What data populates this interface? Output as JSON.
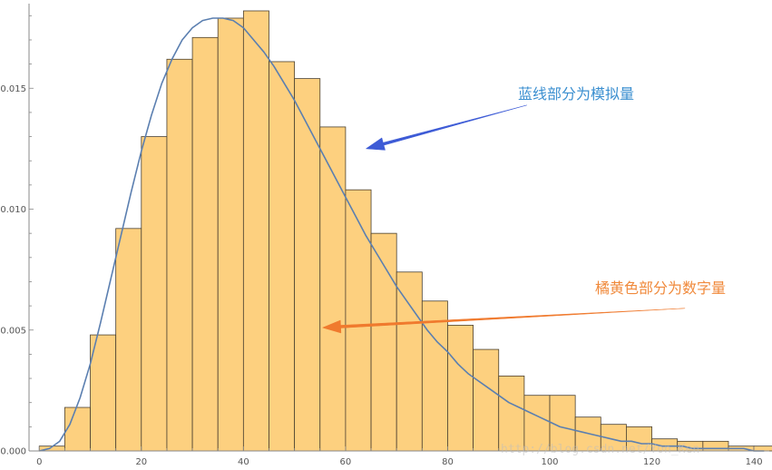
{
  "chart_data": {
    "type": "bar",
    "subtype": "histogram-with-density-curve",
    "bin_width": 5,
    "bin_left_edges": [
      0,
      5,
      10,
      15,
      20,
      25,
      30,
      35,
      40,
      45,
      50,
      55,
      60,
      65,
      70,
      75,
      80,
      85,
      90,
      95,
      100,
      105,
      110,
      115,
      120,
      125,
      130,
      135,
      140
    ],
    "values": [
      0.0002,
      0.0018,
      0.0048,
      0.0092,
      0.013,
      0.0162,
      0.0171,
      0.0179,
      0.0182,
      0.0161,
      0.0154,
      0.0134,
      0.0108,
      0.009,
      0.0074,
      0.0062,
      0.0052,
      0.0042,
      0.0031,
      0.0023,
      0.0023,
      0.0014,
      0.0011,
      0.001,
      0.0005,
      0.0004,
      0.0004,
      0.0002,
      0.0002
    ],
    "curve": {
      "x": [
        0,
        2,
        4,
        6,
        8,
        10,
        12,
        14,
        16,
        18,
        20,
        22,
        24,
        26,
        28,
        30,
        32,
        34,
        36,
        38,
        40,
        42,
        44,
        46,
        48,
        50,
        52,
        54,
        56,
        58,
        60,
        62,
        64,
        66,
        68,
        70,
        72,
        74,
        76,
        78,
        80,
        82,
        84,
        86,
        88,
        90,
        92,
        94,
        96,
        98,
        100,
        102,
        104,
        106,
        108,
        110,
        112,
        114,
        116,
        118,
        120,
        122,
        124,
        126,
        128,
        130,
        132,
        134,
        136,
        138,
        140,
        142
      ],
      "y": [
        0.0,
        0.0001,
        0.0004,
        0.0011,
        0.0022,
        0.0036,
        0.0053,
        0.0071,
        0.0089,
        0.0107,
        0.0124,
        0.0139,
        0.0152,
        0.0162,
        0.017,
        0.0175,
        0.0178,
        0.0179,
        0.0179,
        0.0178,
        0.0175,
        0.017,
        0.0165,
        0.0159,
        0.0152,
        0.0145,
        0.0137,
        0.0129,
        0.0121,
        0.0113,
        0.0105,
        0.0097,
        0.0089,
        0.0082,
        0.0075,
        0.0068,
        0.0062,
        0.0056,
        0.005,
        0.0045,
        0.0041,
        0.0036,
        0.0032,
        0.0029,
        0.0026,
        0.0023,
        0.002,
        0.0018,
        0.0016,
        0.0014,
        0.0012,
        0.001,
        0.0009,
        0.0008,
        0.0007,
        0.0006,
        0.0005,
        0.0004,
        0.0004,
        0.0003,
        0.0003,
        0.0002,
        0.0002,
        0.0002,
        0.0001,
        0.0001,
        0.0001,
        0.0001,
        0.0001,
        0.0001,
        0.0,
        0.0
      ],
      "color": "#5b7fb0"
    },
    "xlim": [
      -2,
      143
    ],
    "ylim": [
      0,
      0.0185
    ],
    "x_ticks": [
      0,
      20,
      40,
      60,
      80,
      100,
      120,
      140
    ],
    "x_tick_labels": [
      "0",
      "20",
      "40",
      "60",
      "80",
      "100",
      "120",
      "140"
    ],
    "x_minor_step": 5,
    "y_ticks": [
      0.0,
      0.005,
      0.01,
      0.015
    ],
    "y_tick_labels": [
      "0.000",
      "0.005",
      "0.010",
      "0.015"
    ],
    "y_minor_step": 0.001,
    "title": "",
    "xlabel": "",
    "ylabel": "",
    "bar_fill": "#fdd07f",
    "bar_stroke": "#4a4030",
    "axis_color": "#888888",
    "grid": false,
    "annotations": [
      {
        "text": "蓝线部分为模拟量",
        "color": "#3b8fd0",
        "arrow_color": "#3d5bd6",
        "tail": [
          95.5,
          0.0143
        ],
        "head": [
          64.0,
          0.0125
        ]
      },
      {
        "text": "橘黄色部分为数字量",
        "color": "#f08a3c",
        "arrow_color": "#f07a2e",
        "tail": [
          126.5,
          0.0059
        ],
        "head": [
          55.5,
          0.0051
        ]
      }
    ],
    "watermark": "http://blog.csdn.net/Yon_Ken"
  }
}
